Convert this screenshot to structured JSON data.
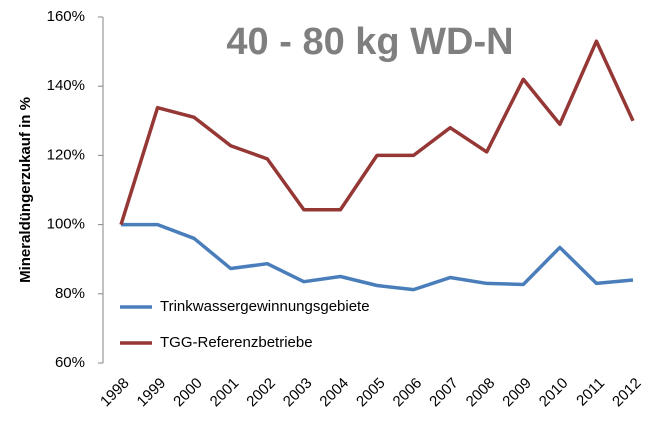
{
  "chart_data": {
    "type": "line",
    "title": "40 - 80 kg WD-N",
    "y_label": "Mineraldüngerzukauf in %",
    "categories": [
      "1998",
      "1999",
      "2000",
      "2001",
      "2002",
      "2003",
      "2004",
      "2005",
      "2006",
      "2007",
      "2008",
      "2009",
      "2010",
      "2011",
      "2012"
    ],
    "series": [
      {
        "name": "Trinkwassergewinnungsgebiete",
        "color": "#4a7ebb",
        "values": [
          100,
          100,
          96,
          87.3,
          88.7,
          83.5,
          85,
          82.4,
          81.2,
          84.7,
          83,
          82.7,
          93.4,
          83,
          84
        ]
      },
      {
        "name": "TGG-Referenzbetriebe",
        "color": "#953735",
        "values": [
          100,
          133.8,
          131,
          122.8,
          119,
          104.3,
          104.3,
          120,
          120,
          128,
          121,
          142,
          129,
          153,
          130
        ]
      }
    ],
    "ylim": [
      60,
      160
    ],
    "yticks": [
      {
        "value": 60,
        "label": "60%"
      },
      {
        "value": 80,
        "label": "80%"
      },
      {
        "value": 100,
        "label": "100%"
      },
      {
        "value": 120,
        "label": "120%"
      },
      {
        "value": 140,
        "label": "140%"
      },
      {
        "value": 160,
        "label": "160%"
      }
    ],
    "grid": false,
    "legend": "lower left"
  }
}
